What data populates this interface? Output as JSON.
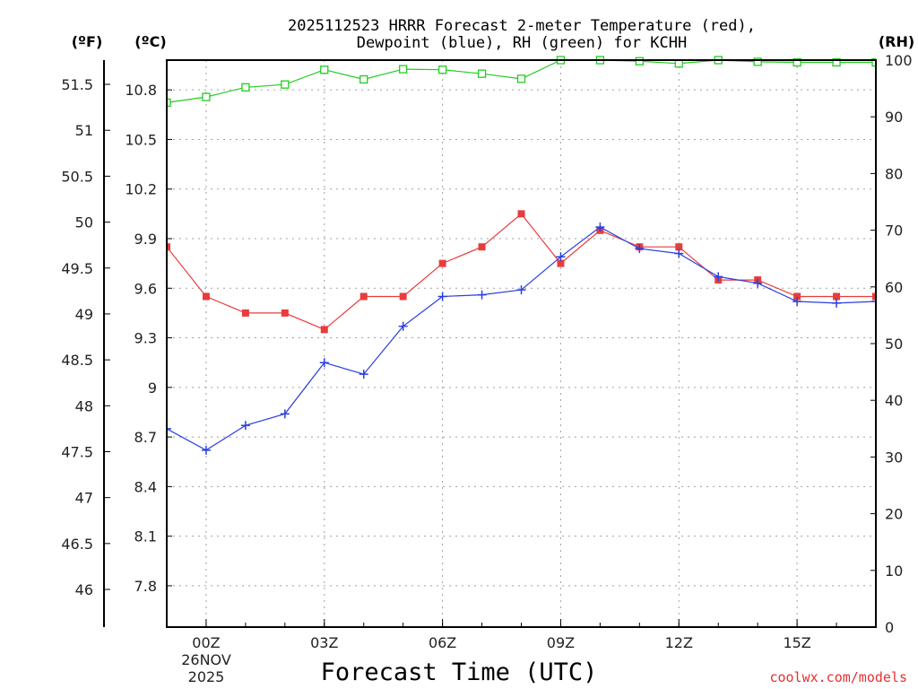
{
  "chart_data": {
    "type": "line",
    "title": "2025112523 HRRR Forecast 2-meter Temperature (red),",
    "subtitle": "Dewpoint (blue), RH (green) for KCHH",
    "xlabel": "Forecast Time (UTC)",
    "credit": "coolwx.com/models",
    "units": {
      "fahrenheit": "(ºF)",
      "celsius": "(ºC)",
      "rh": "(RH)"
    },
    "x_range": [
      -1,
      17
    ],
    "x_ticks": [
      {
        "x": 0,
        "label": "00Z"
      },
      {
        "x": 3,
        "label": "03Z"
      },
      {
        "x": 6,
        "label": "06Z"
      },
      {
        "x": 9,
        "label": "09Z"
      },
      {
        "x": 12,
        "label": "12Z"
      },
      {
        "x": 15,
        "label": "15Z"
      }
    ],
    "date_label": [
      "26NOV",
      "2025"
    ],
    "celsius_axis": {
      "range": [
        7.55,
        10.98
      ],
      "ticks": [
        "7.8",
        "8.1",
        "8.4",
        "8.7",
        "9",
        "9.3",
        "9.6",
        "9.9",
        "10.2",
        "10.5",
        "10.8"
      ]
    },
    "fahrenheit_axis": {
      "range": [
        45.59,
        51.764
      ],
      "ticks": [
        "46",
        "46.5",
        "47",
        "47.5",
        "48",
        "48.5",
        "49",
        "49.5",
        "50",
        "50.5",
        "51",
        "51.5"
      ]
    },
    "rh_axis": {
      "range": [
        0,
        100
      ],
      "ticks": [
        "0",
        "10",
        "20",
        "30",
        "40",
        "50",
        "60",
        "70",
        "80",
        "90",
        "100"
      ]
    },
    "series": [
      {
        "name": "Temperature",
        "color": "#e83c3c",
        "marker": "filled-square",
        "axis": "celsius",
        "x": [
          -1,
          0,
          1,
          2,
          3,
          4,
          5,
          6,
          7,
          8,
          9,
          10,
          11,
          12,
          13,
          14,
          15,
          16,
          17
        ],
        "values": [
          9.85,
          9.55,
          9.45,
          9.45,
          9.35,
          9.55,
          9.55,
          9.75,
          9.85,
          10.05,
          9.75,
          9.95,
          9.85,
          9.85,
          9.65,
          9.65,
          9.55,
          9.55,
          9.55
        ]
      },
      {
        "name": "Dewpoint",
        "color": "#2a3fe0",
        "marker": "plus",
        "axis": "celsius",
        "x": [
          -1,
          0,
          1,
          2,
          3,
          4,
          5,
          6,
          7,
          8,
          9,
          10,
          11,
          12,
          13,
          14,
          15,
          16,
          17
        ],
        "values": [
          8.75,
          8.62,
          8.77,
          8.84,
          9.15,
          9.08,
          9.37,
          9.55,
          9.56,
          9.59,
          9.79,
          9.97,
          9.84,
          9.81,
          9.67,
          9.63,
          9.52,
          9.51,
          9.52
        ]
      },
      {
        "name": "RH",
        "color": "#22cc22",
        "marker": "open-square",
        "axis": "rh",
        "x": [
          -1,
          0,
          1,
          2,
          3,
          4,
          5,
          6,
          7,
          8,
          9,
          10,
          11,
          12,
          13,
          14,
          15,
          16,
          17
        ],
        "values": [
          92.5,
          93.5,
          95.2,
          95.7,
          98.3,
          96.6,
          98.4,
          98.3,
          97.6,
          96.7,
          100,
          100,
          99.8,
          99.4,
          100,
          99.7,
          99.6,
          99.6,
          99.6
        ]
      }
    ]
  }
}
